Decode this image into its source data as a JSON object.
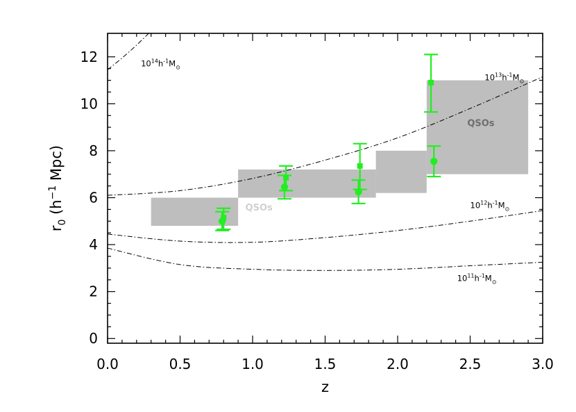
{
  "chart_data": {
    "type": "scatter",
    "title": "",
    "xlabel": "z",
    "ylabel": "r0 (h-1 Mpc)",
    "xlim": [
      0.0,
      3.0
    ],
    "ylim": [
      -0.2,
      13.0
    ],
    "x_ticks": [
      "0.0",
      "0.5",
      "1.0",
      "1.5",
      "2.0",
      "2.5",
      "3.0"
    ],
    "y_ticks": [
      "0",
      "2",
      "4",
      "6",
      "8",
      "10",
      "12"
    ],
    "colors": {
      "points": "#22ee22",
      "boxes": "#bebebe",
      "box_label_light": "#d0d0d0",
      "box_label_dark": "#6e6e6e",
      "curves": "#000000"
    },
    "qso_boxes": [
      {
        "x0": 0.3,
        "x1": 0.9,
        "y0": 4.8,
        "y1": 6.0
      },
      {
        "x0": 0.9,
        "x1": 1.85,
        "y0": 6.0,
        "y1": 7.2
      },
      {
        "x0": 1.85,
        "x1": 2.2,
        "y0": 6.2,
        "y1": 8.0
      },
      {
        "x0": 2.2,
        "x1": 2.9,
        "y0": 7.0,
        "y1": 11.0
      }
    ],
    "box_labels": [
      {
        "text": "QSOs",
        "x": 0.95,
        "y": 5.45,
        "tone": "light"
      },
      {
        "text": "QSOs",
        "x": 2.48,
        "y": 9.05,
        "tone": "dark"
      }
    ],
    "series": [
      {
        "name": "circles",
        "marker": "circle",
        "points": [
          {
            "x": 0.79,
            "y": 5.0,
            "ylo": 4.6,
            "yhi": 5.4
          },
          {
            "x": 1.22,
            "y": 6.45,
            "ylo": 5.95,
            "yhi": 6.95
          },
          {
            "x": 1.73,
            "y": 6.25,
            "ylo": 5.75,
            "yhi": 6.75
          },
          {
            "x": 2.25,
            "y": 7.55,
            "ylo": 6.9,
            "yhi": 8.2
          }
        ]
      },
      {
        "name": "squares",
        "marker": "square",
        "points": [
          {
            "x": 0.8,
            "y": 5.15,
            "ylo": 4.65,
            "yhi": 5.55
          },
          {
            "x": 1.23,
            "y": 6.85,
            "ylo": 6.3,
            "yhi": 7.35
          },
          {
            "x": 1.74,
            "y": 7.35,
            "ylo": 6.35,
            "yhi": 8.3
          },
          {
            "x": 2.23,
            "y": 10.9,
            "ylo": 9.65,
            "yhi": 12.1
          }
        ]
      }
    ],
    "halo_curves": [
      {
        "label_base": "10",
        "label_exp": "14",
        "label_unit": "h",
        "label_unit_exp": "-1",
        "label_mass": "M",
        "label_sun": "⊙",
        "label_pos": {
          "x": 0.23,
          "y": 11.6
        },
        "points": [
          [
            0.0,
            11.45
          ],
          [
            0.1,
            11.95
          ],
          [
            0.2,
            12.5
          ],
          [
            0.3,
            13.1
          ],
          [
            0.35,
            13.45
          ]
        ]
      },
      {
        "label_base": "10",
        "label_exp": "13",
        "label_unit": "h",
        "label_unit_exp": "-1",
        "label_mass": "M",
        "label_sun": "⊙",
        "label_pos": {
          "x": 2.6,
          "y": 11.0
        },
        "points": [
          [
            0.0,
            6.1
          ],
          [
            0.5,
            6.3
          ],
          [
            1.0,
            6.82
          ],
          [
            1.5,
            7.6
          ],
          [
            2.0,
            8.55
          ],
          [
            2.5,
            9.8
          ],
          [
            3.0,
            11.15
          ]
        ]
      },
      {
        "label_base": "10",
        "label_exp": "12",
        "label_unit": "h",
        "label_unit_exp": "-1",
        "label_mass": "M",
        "label_sun": "⊙",
        "label_pos": {
          "x": 2.5,
          "y": 5.55
        },
        "points": [
          [
            0.0,
            4.45
          ],
          [
            0.5,
            4.15
          ],
          [
            1.0,
            4.1
          ],
          [
            1.5,
            4.3
          ],
          [
            2.0,
            4.6
          ],
          [
            2.5,
            5.0
          ],
          [
            3.0,
            5.45
          ]
        ]
      },
      {
        "label_base": "10",
        "label_exp": "11",
        "label_unit": "h",
        "label_unit_exp": "-1",
        "label_mass": "M",
        "label_sun": "⊙",
        "label_pos": {
          "x": 2.41,
          "y": 2.45
        },
        "points": [
          [
            0.0,
            3.85
          ],
          [
            0.5,
            3.15
          ],
          [
            1.0,
            2.95
          ],
          [
            1.5,
            2.9
          ],
          [
            2.0,
            2.95
          ],
          [
            2.5,
            3.1
          ],
          [
            3.0,
            3.25
          ]
        ]
      }
    ]
  }
}
